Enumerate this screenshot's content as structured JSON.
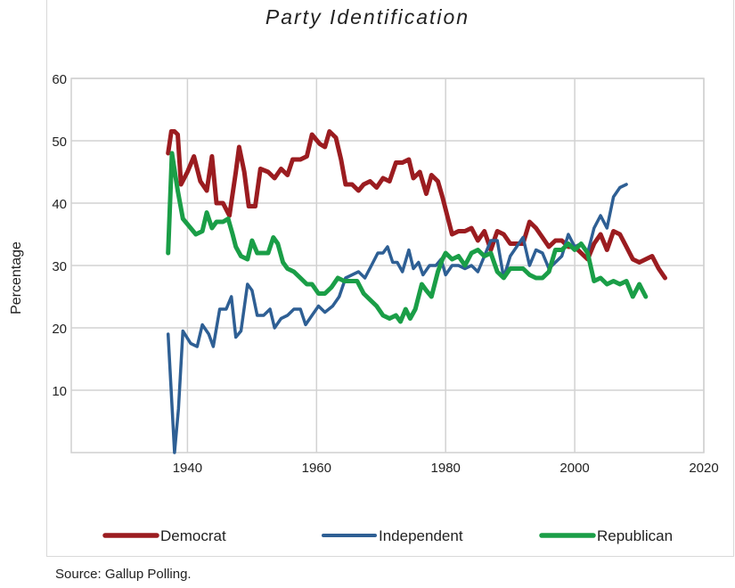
{
  "chart_data": {
    "type": "line",
    "title": "Party Identification",
    "xlabel": "",
    "ylabel": "Percentage",
    "xlim": [
      1922,
      2020
    ],
    "ylim": [
      0,
      60
    ],
    "x_ticks": [
      "1940",
      "1960",
      "1980",
      "2000",
      "2020"
    ],
    "y_ticks": [
      "10",
      "20",
      "30",
      "40",
      "50",
      "60"
    ],
    "grid": true,
    "legend_position": "bottom",
    "series": [
      {
        "name": "Democrat",
        "color": "#9b1c20",
        "points": [
          [
            1937,
            48
          ],
          [
            1937.5,
            51.5
          ],
          [
            1938,
            51.5
          ],
          [
            1938.5,
            51
          ],
          [
            1939,
            43
          ],
          [
            1940,
            45
          ],
          [
            1941,
            47.5
          ],
          [
            1942,
            43.5
          ],
          [
            1943,
            42
          ],
          [
            1943.8,
            47.5
          ],
          [
            1944.5,
            40
          ],
          [
            1945.5,
            40
          ],
          [
            1946.5,
            38
          ],
          [
            1947.5,
            45
          ],
          [
            1948,
            49
          ],
          [
            1948.8,
            45
          ],
          [
            1949.5,
            39.5
          ],
          [
            1950.5,
            39.5
          ],
          [
            1951.3,
            45.5
          ],
          [
            1952.5,
            45
          ],
          [
            1953.5,
            44
          ],
          [
            1954.5,
            45.5
          ],
          [
            1955.5,
            44.5
          ],
          [
            1956.3,
            47
          ],
          [
            1957.5,
            47
          ],
          [
            1958.5,
            47.5
          ],
          [
            1959.3,
            51
          ],
          [
            1960.5,
            49.5
          ],
          [
            1961.3,
            49
          ],
          [
            1962,
            51.5
          ],
          [
            1963,
            50.5
          ],
          [
            1963.8,
            47
          ],
          [
            1964.5,
            43
          ],
          [
            1965.5,
            43
          ],
          [
            1966.5,
            42
          ],
          [
            1967.3,
            43
          ],
          [
            1968.3,
            43.5
          ],
          [
            1969.3,
            42.5
          ],
          [
            1970.3,
            44
          ],
          [
            1971.3,
            43.5
          ],
          [
            1972.3,
            46.5
          ],
          [
            1973.3,
            46.5
          ],
          [
            1974.3,
            47
          ],
          [
            1975,
            44
          ],
          [
            1976,
            45
          ],
          [
            1977,
            41.5
          ],
          [
            1977.8,
            44.5
          ],
          [
            1978.8,
            43.5
          ],
          [
            1979.5,
            41
          ],
          [
            1980.5,
            37
          ],
          [
            1981,
            35
          ],
          [
            1982,
            35.5
          ],
          [
            1983,
            35.5
          ],
          [
            1984,
            36
          ],
          [
            1985,
            34
          ],
          [
            1986,
            35.5
          ],
          [
            1987,
            32.5
          ],
          [
            1988,
            35.5
          ],
          [
            1989,
            35
          ],
          [
            1990,
            33.5
          ],
          [
            1991,
            33.5
          ],
          [
            1992,
            33.5
          ],
          [
            1993,
            37
          ],
          [
            1994,
            36
          ],
          [
            1995,
            34.5
          ],
          [
            1996,
            33
          ],
          [
            1997,
            34
          ],
          [
            1998,
            34
          ],
          [
            1999,
            33
          ],
          [
            2000,
            33
          ],
          [
            2001,
            32
          ],
          [
            2002,
            31
          ],
          [
            2003,
            33.5
          ],
          [
            2004,
            35
          ],
          [
            2005,
            32.5
          ],
          [
            2006,
            35.5
          ],
          [
            2007,
            35
          ],
          [
            2008,
            33
          ],
          [
            2009,
            31
          ],
          [
            2010,
            30.5
          ],
          [
            2011,
            31
          ],
          [
            2012,
            31.5
          ],
          [
            2013,
            29.5
          ],
          [
            2014,
            28
          ]
        ]
      },
      {
        "name": "Independent",
        "color": "#2e5f94",
        "points": [
          [
            1937,
            19
          ],
          [
            1938,
            0
          ],
          [
            1938.6,
            7
          ],
          [
            1939.3,
            19.5
          ],
          [
            1940.5,
            17.5
          ],
          [
            1941.5,
            17
          ],
          [
            1942.3,
            20.5
          ],
          [
            1943.3,
            19
          ],
          [
            1944,
            17
          ],
          [
            1945,
            23
          ],
          [
            1946,
            23
          ],
          [
            1946.8,
            25
          ],
          [
            1947.5,
            18.5
          ],
          [
            1948.3,
            19.5
          ],
          [
            1949.3,
            27
          ],
          [
            1950,
            26
          ],
          [
            1950.8,
            22
          ],
          [
            1951.8,
            22
          ],
          [
            1952.8,
            23
          ],
          [
            1953.5,
            20
          ],
          [
            1954.5,
            21.5
          ],
          [
            1955.5,
            22
          ],
          [
            1956.5,
            23
          ],
          [
            1957.5,
            23
          ],
          [
            1958.3,
            20.5
          ],
          [
            1959.3,
            22
          ],
          [
            1960.3,
            23.5
          ],
          [
            1961.3,
            22.5
          ],
          [
            1962.5,
            23.5
          ],
          [
            1963.5,
            25
          ],
          [
            1964.5,
            28
          ],
          [
            1965.5,
            28.5
          ],
          [
            1966.5,
            29
          ],
          [
            1967.5,
            28
          ],
          [
            1968.5,
            30
          ],
          [
            1969.5,
            32
          ],
          [
            1970.3,
            32
          ],
          [
            1971,
            33
          ],
          [
            1971.8,
            30.5
          ],
          [
            1972.5,
            30.5
          ],
          [
            1973.3,
            29
          ],
          [
            1974.3,
            32.5
          ],
          [
            1975,
            29.5
          ],
          [
            1975.8,
            30.5
          ],
          [
            1976.5,
            28.5
          ],
          [
            1977.5,
            30
          ],
          [
            1978.5,
            30
          ],
          [
            1979.3,
            31
          ],
          [
            1980,
            28.5
          ],
          [
            1981,
            30
          ],
          [
            1982,
            30
          ],
          [
            1983,
            29.5
          ],
          [
            1984,
            30
          ],
          [
            1985,
            29
          ],
          [
            1986,
            31.5
          ],
          [
            1987,
            34
          ],
          [
            1988,
            34
          ],
          [
            1989,
            28
          ],
          [
            1990,
            31.5
          ],
          [
            1991,
            33
          ],
          [
            1992,
            34.5
          ],
          [
            1993,
            30
          ],
          [
            1994,
            32.5
          ],
          [
            1995,
            32
          ],
          [
            1996,
            29.5
          ],
          [
            1997,
            30.5
          ],
          [
            1998,
            31.5
          ],
          [
            1999,
            35
          ],
          [
            2000,
            33
          ],
          [
            2001,
            33.5
          ],
          [
            2002,
            32
          ],
          [
            2003,
            36
          ],
          [
            2004,
            38
          ],
          [
            2005,
            36
          ],
          [
            2006,
            41
          ],
          [
            2007,
            42.5
          ],
          [
            2008,
            43
          ]
        ]
      },
      {
        "name": "Republican",
        "color": "#1a9e47",
        "points": [
          [
            1937,
            32
          ],
          [
            1937.6,
            48
          ],
          [
            1938.5,
            42
          ],
          [
            1939.3,
            37.5
          ],
          [
            1940.5,
            36
          ],
          [
            1941.3,
            35
          ],
          [
            1942.3,
            35.5
          ],
          [
            1943,
            38.5
          ],
          [
            1943.8,
            36
          ],
          [
            1944.5,
            37
          ],
          [
            1945.5,
            37
          ],
          [
            1946.3,
            37.5
          ],
          [
            1947,
            35
          ],
          [
            1947.5,
            33
          ],
          [
            1948.3,
            31.5
          ],
          [
            1949.3,
            31
          ],
          [
            1950,
            34
          ],
          [
            1950.8,
            32
          ],
          [
            1951.8,
            32
          ],
          [
            1952.5,
            32
          ],
          [
            1953.3,
            34.5
          ],
          [
            1954,
            33.5
          ],
          [
            1954.8,
            30.5
          ],
          [
            1955.5,
            29.5
          ],
          [
            1956.5,
            29
          ],
          [
            1957.5,
            28
          ],
          [
            1958.5,
            27
          ],
          [
            1959.3,
            27
          ],
          [
            1960.3,
            25.5
          ],
          [
            1961.3,
            25.5
          ],
          [
            1962.3,
            26.5
          ],
          [
            1963.3,
            28
          ],
          [
            1964.3,
            27.5
          ],
          [
            1965.3,
            27.5
          ],
          [
            1966.3,
            27.5
          ],
          [
            1967.3,
            25.5
          ],
          [
            1968.3,
            24.5
          ],
          [
            1969.3,
            23.5
          ],
          [
            1970.3,
            22
          ],
          [
            1971.3,
            21.5
          ],
          [
            1972.3,
            22
          ],
          [
            1973,
            21
          ],
          [
            1973.8,
            23
          ],
          [
            1974.5,
            21.5
          ],
          [
            1975.3,
            23
          ],
          [
            1976.3,
            27
          ],
          [
            1977,
            26
          ],
          [
            1977.8,
            25
          ],
          [
            1978.8,
            29
          ],
          [
            1979.5,
            31
          ],
          [
            1980,
            32
          ],
          [
            1981,
            31
          ],
          [
            1982,
            31.5
          ],
          [
            1983,
            30
          ],
          [
            1984,
            32
          ],
          [
            1985,
            32.5
          ],
          [
            1986,
            31.5
          ],
          [
            1987,
            32
          ],
          [
            1988,
            29
          ],
          [
            1989,
            28
          ],
          [
            1990,
            29.5
          ],
          [
            1991,
            29.5
          ],
          [
            1992,
            29.5
          ],
          [
            1993,
            28.5
          ],
          [
            1994,
            28
          ],
          [
            1995,
            28
          ],
          [
            1996,
            29
          ],
          [
            1997,
            32.5
          ],
          [
            1998,
            32.5
          ],
          [
            1999,
            33.5
          ],
          [
            2000,
            32.5
          ],
          [
            2001,
            33.5
          ],
          [
            2002,
            32
          ],
          [
            2003,
            27.5
          ],
          [
            2004,
            28
          ],
          [
            2005,
            27
          ],
          [
            2006,
            27.5
          ],
          [
            2007,
            27
          ],
          [
            2008,
            27.5
          ],
          [
            2009,
            25
          ],
          [
            2010,
            27
          ],
          [
            2011,
            25
          ]
        ]
      }
    ]
  },
  "source": "Source: Gallup Polling."
}
